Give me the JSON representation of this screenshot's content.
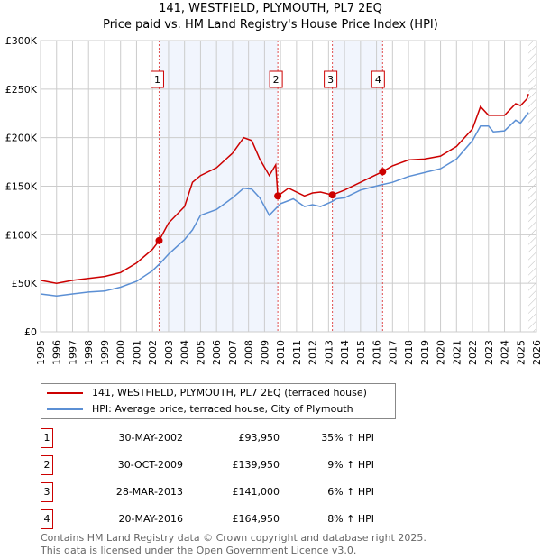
{
  "chart_data": {
    "type": "line",
    "title": "141, WESTFIELD, PLYMOUTH, PL7 2EQ",
    "subtitle": "Price paid vs. HM Land Registry's House Price Index (HPI)",
    "xlim": [
      1995,
      2026
    ],
    "ylim": [
      0,
      300000
    ],
    "x_ticks": [
      "1995",
      "1996",
      "1997",
      "1998",
      "1999",
      "2000",
      "2001",
      "2002",
      "2003",
      "2004",
      "2005",
      "2006",
      "2007",
      "2008",
      "2009",
      "2010",
      "2011",
      "2012",
      "2013",
      "2014",
      "2015",
      "2016",
      "2017",
      "2018",
      "2019",
      "2020",
      "2021",
      "2022",
      "2023",
      "2024",
      "2025",
      "2026"
    ],
    "y_ticks": [
      {
        "v": 0,
        "label": "£0"
      },
      {
        "v": 50000,
        "label": "£50K"
      },
      {
        "v": 100000,
        "label": "£100K"
      },
      {
        "v": 150000,
        "label": "£150K"
      },
      {
        "v": 200000,
        "label": "£200K"
      },
      {
        "v": 250000,
        "label": "£250K"
      },
      {
        "v": 300000,
        "label": "£300K"
      }
    ],
    "grid": true,
    "series": [
      {
        "name": "141, WESTFIELD, PLYMOUTH, PL7 2EQ (terraced house)",
        "color": "#cc0000",
        "x": [
          1995,
          1996,
          1997,
          1998,
          1999,
          2000,
          2001,
          2002,
          2002.41,
          2003,
          2004,
          2004.5,
          2005,
          2006,
          2007,
          2007.7,
          2008.2,
          2008.7,
          2009.3,
          2009.7,
          2009.83,
          2010.5,
          2011.5,
          2012,
          2012.5,
          2013.24,
          2014,
          2015,
          2016.38,
          2017,
          2018,
          2019,
          2020,
          2021,
          2022,
          2022.5,
          2023,
          2024,
          2024.7,
          2025,
          2025.4,
          2025.5
        ],
        "y": [
          53,
          50,
          53,
          55,
          57,
          61,
          71,
          85,
          94,
          112,
          129,
          154,
          161,
          169,
          184,
          200,
          197,
          178,
          161,
          172,
          140,
          148,
          140,
          143,
          144,
          141,
          146,
          154,
          165,
          171,
          177,
          178,
          181,
          191,
          209,
          232,
          223,
          223,
          235,
          233,
          240,
          245
        ]
      },
      {
        "name": "HPI: Average price, terraced house, City of Plymouth",
        "color": "#5b8fd4",
        "x": [
          1995,
          1996,
          1997,
          1998,
          1999,
          2000,
          2001,
          2002,
          2002.5,
          2003,
          2004,
          2004.5,
          2005,
          2006,
          2007,
          2007.7,
          2008.2,
          2008.7,
          2009.3,
          2010,
          2010.8,
          2011.5,
          2012,
          2012.5,
          2013.2,
          2013.5,
          2014,
          2015,
          2016.2,
          2017,
          2018,
          2019,
          2020,
          2021,
          2022,
          2022.5,
          2023,
          2023.3,
          2024,
          2024.7,
          2025,
          2025.5
        ],
        "y": [
          39,
          37,
          39,
          41,
          42,
          46,
          52,
          63,
          71,
          80,
          95,
          105,
          120,
          126,
          138,
          148,
          147,
          138,
          120,
          132,
          137,
          129,
          131,
          129,
          134,
          137,
          138,
          146,
          151,
          154,
          160,
          164,
          168,
          178,
          197,
          212,
          212,
          206,
          207,
          218,
          215,
          226
        ]
      }
    ],
    "y_units": "thousands GBP",
    "shaded_ranges": [
      [
        2002.41,
        2009.83
      ],
      [
        2013.24,
        2016.38
      ]
    ],
    "hatched_from": 2025.5,
    "sales": [
      {
        "n": "1",
        "x": 2002.41,
        "y": 93.95
      },
      {
        "n": "2",
        "x": 2009.83,
        "y": 139.95
      },
      {
        "n": "3",
        "x": 2013.24,
        "y": 141
      },
      {
        "n": "4",
        "x": 2016.38,
        "y": 164.95
      }
    ]
  },
  "legend": {
    "property": "141, WESTFIELD, PLYMOUTH, PL7 2EQ (terraced house)",
    "hpi": "HPI: Average price, terraced house, City of Plymouth"
  },
  "transactions": [
    {
      "n": "1",
      "date": "30-MAY-2002",
      "price": "£93,950",
      "hpi": "35% ↑ HPI"
    },
    {
      "n": "2",
      "date": "30-OCT-2009",
      "price": "£139,950",
      "hpi": "9% ↑ HPI"
    },
    {
      "n": "3",
      "date": "28-MAR-2013",
      "price": "£141,000",
      "hpi": "6% ↑ HPI"
    },
    {
      "n": "4",
      "date": "20-MAY-2016",
      "price": "£164,950",
      "hpi": "8% ↑ HPI"
    }
  ],
  "footer": {
    "line1": "Contains HM Land Registry data © Crown copyright and database right 2025.",
    "line2": "This data is licensed under the Open Government Licence v3.0."
  }
}
